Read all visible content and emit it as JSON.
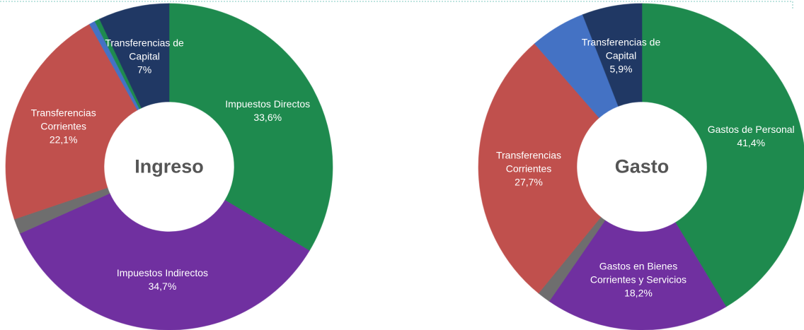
{
  "chart_data": [
    {
      "type": "pie",
      "title": "Ingreso",
      "categories": [
        "Impuestos Directos",
        "Impuestos Indirectos",
        null,
        "Transferencias Corrientes",
        null,
        null,
        "Transferencias de Capital"
      ],
      "values": [
        33.6,
        34.7,
        1.5,
        22.1,
        0.6,
        0.5,
        7
      ],
      "value_labels": [
        "33,6%",
        "34,7%",
        null,
        "22,1%",
        null,
        null,
        "7%"
      ],
      "colors": [
        "#1e8a4e",
        "#7030a0",
        "#6e6e6e",
        "#c0504d",
        "#4472c4",
        "#1e8a4e",
        "#203864"
      ]
    },
    {
      "type": "pie",
      "title": "Gasto",
      "categories": [
        "Gastos de Personal",
        "Gastos en Bienes Corrientes y Servicios",
        null,
        "Transferencias Corrientes",
        null,
        "Transferencias de Capital"
      ],
      "values": [
        41.4,
        18.2,
        1.3,
        27.7,
        5.5,
        5.9
      ],
      "value_labels": [
        "41,4%",
        "18,2%",
        null,
        "27,7%",
        null,
        "5,9%"
      ],
      "colors": [
        "#1e8a4e",
        "#7030a0",
        "#6e6e6e",
        "#c0504d",
        "#4472c4",
        "#203864"
      ]
    }
  ]
}
